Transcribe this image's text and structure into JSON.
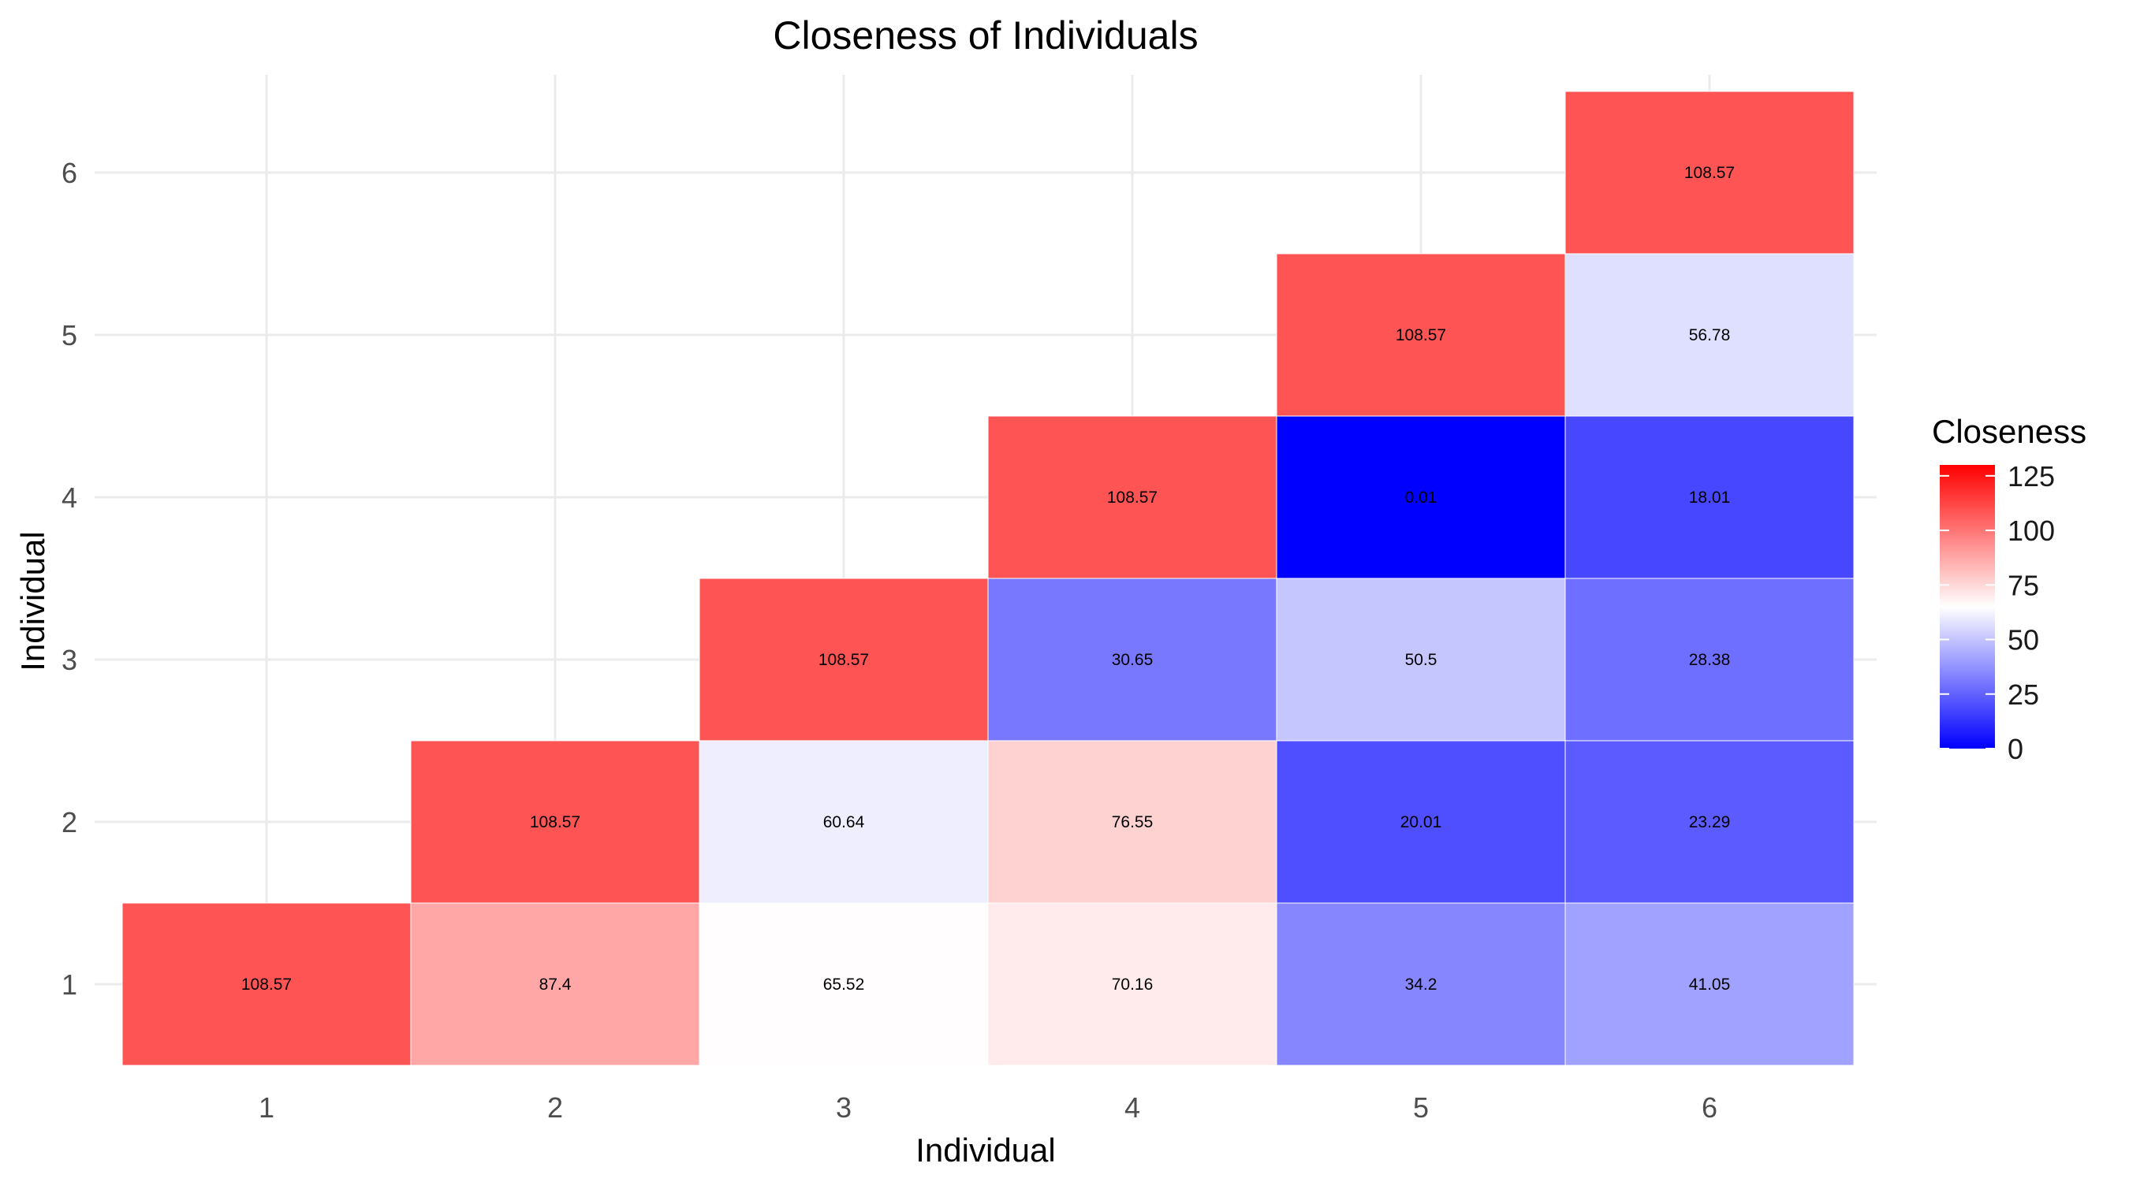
{
  "chart_data": {
    "type": "heatmap",
    "title": "Closeness of Individuals",
    "xlabel": "Individual",
    "ylabel": "Individual",
    "x_categories": [
      "1",
      "2",
      "3",
      "4",
      "5",
      "6"
    ],
    "y_categories": [
      "1",
      "2",
      "3",
      "4",
      "5",
      "6"
    ],
    "cells": [
      {
        "x": "1",
        "y": "1",
        "value": 108.57,
        "label": "108.57"
      },
      {
        "x": "2",
        "y": "1",
        "value": 87.4,
        "label": "87.4"
      },
      {
        "x": "3",
        "y": "1",
        "value": 65.52,
        "label": "65.52"
      },
      {
        "x": "4",
        "y": "1",
        "value": 70.16,
        "label": "70.16"
      },
      {
        "x": "5",
        "y": "1",
        "value": 34.2,
        "label": "34.2"
      },
      {
        "x": "6",
        "y": "1",
        "value": 41.05,
        "label": "41.05"
      },
      {
        "x": "2",
        "y": "2",
        "value": 108.57,
        "label": "108.57"
      },
      {
        "x": "3",
        "y": "2",
        "value": 60.64,
        "label": "60.64"
      },
      {
        "x": "4",
        "y": "2",
        "value": 76.55,
        "label": "76.55"
      },
      {
        "x": "5",
        "y": "2",
        "value": 20.01,
        "label": "20.01"
      },
      {
        "x": "6",
        "y": "2",
        "value": 23.29,
        "label": "23.29"
      },
      {
        "x": "3",
        "y": "3",
        "value": 108.57,
        "label": "108.57"
      },
      {
        "x": "4",
        "y": "3",
        "value": 30.65,
        "label": "30.65"
      },
      {
        "x": "5",
        "y": "3",
        "value": 50.5,
        "label": "50.5"
      },
      {
        "x": "6",
        "y": "3",
        "value": 28.38,
        "label": "28.38"
      },
      {
        "x": "4",
        "y": "4",
        "value": 108.57,
        "label": "108.57"
      },
      {
        "x": "5",
        "y": "4",
        "value": 0.01,
        "label": "0.01"
      },
      {
        "x": "6",
        "y": "4",
        "value": 18.01,
        "label": "18.01"
      },
      {
        "x": "5",
        "y": "5",
        "value": 108.57,
        "label": "108.57"
      },
      {
        "x": "6",
        "y": "5",
        "value": 56.78,
        "label": "56.78"
      },
      {
        "x": "6",
        "y": "6",
        "value": 108.57,
        "label": "108.57"
      }
    ],
    "legend": {
      "title": "Closeness",
      "ticks": [
        0,
        25,
        50,
        75,
        100,
        125
      ],
      "range": [
        0,
        130
      ],
      "low_color": "#0000ff",
      "mid_color": "#ffffff",
      "mid_value": 65,
      "high_color": "#ff0000",
      "placement": "right"
    },
    "grid": true
  }
}
